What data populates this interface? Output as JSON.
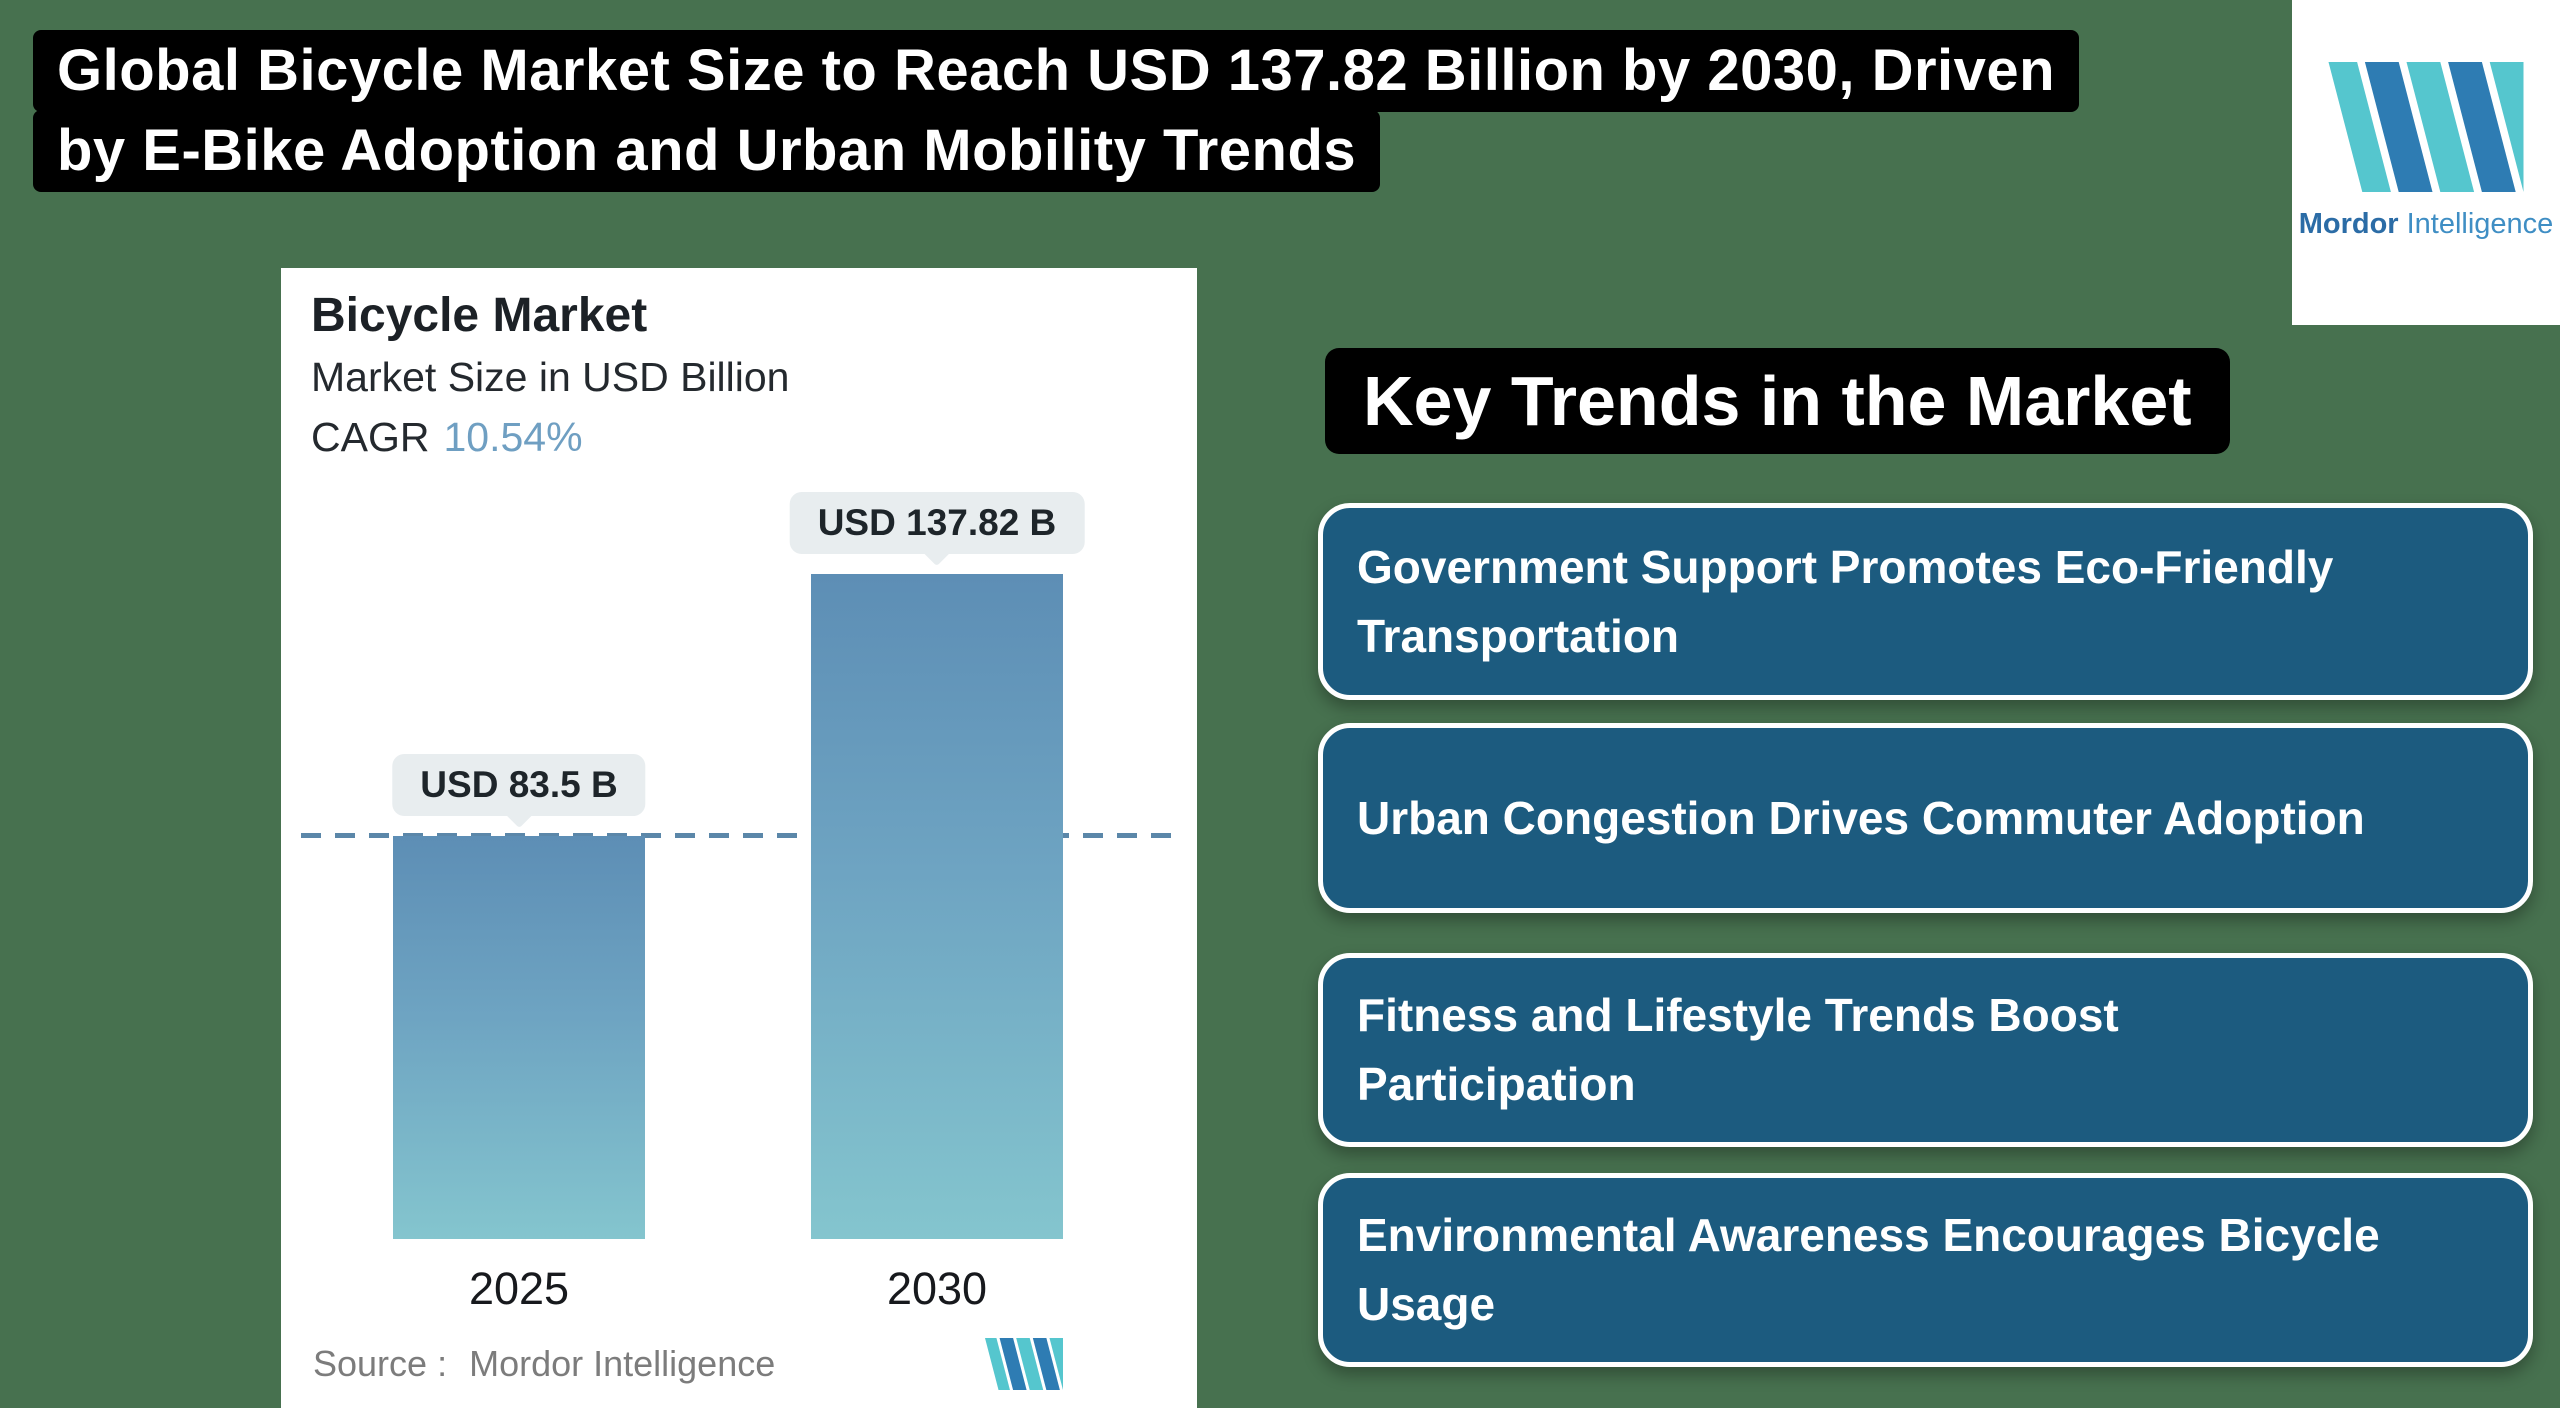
{
  "title_banner": {
    "line1": "Global Bicycle Market Size to Reach USD 137.82 Billion by 2030, Driven",
    "line2": "by E-Bike Adoption and Urban Mobility Trends"
  },
  "brand_badge": {
    "word_primary": "Mordor",
    "word_secondary": "Intelligence"
  },
  "chart_card": {
    "title": "Bicycle Market",
    "subtitle": "Market Size in USD Billion",
    "cagr_label": "CAGR",
    "cagr_value": "10.54%",
    "source_label": "Source :",
    "source_value": "Mordor Intelligence"
  },
  "chart_data": {
    "type": "bar",
    "title": "Bicycle Market",
    "ylabel": "Market Size in USD Billion",
    "cagr_percent": 10.54,
    "categories": [
      "2025",
      "2030"
    ],
    "values": [
      83.5,
      137.82
    ],
    "bar_labels": [
      "USD 83.5 B",
      "USD 137.82 B"
    ],
    "reference_line_value": 83.5,
    "grid": false,
    "legend": false,
    "bar_gradient_top": "#5d8eb5",
    "bar_gradient_bottom": "#84c5ce",
    "reference_line_color": "#5b87a9"
  },
  "key_trends": {
    "heading": "Key Trends in the Market",
    "items": [
      {
        "lines": [
          "Government Support Promotes Eco-Friendly",
          "Transportation"
        ]
      },
      {
        "lines": [
          "Urban Congestion Drives Commuter Adoption"
        ]
      },
      {
        "lines": [
          "Fitness and Lifestyle Trends Boost",
          "Participation"
        ]
      },
      {
        "lines": [
          "Environmental Awareness Encourages Bicycle",
          "Usage"
        ]
      }
    ]
  },
  "colors": {
    "page_background": "#47714f",
    "banner_background": "#000000",
    "trend_box_fill": "#1c5b7f",
    "card_background": "#ffffff",
    "cagr_accent": "#6f9fc2",
    "pill_background": "#e8edef",
    "brand_blue": "#2e7cb3",
    "brand_teal": "#55c6ce",
    "source_gray": "#7c7c7c"
  }
}
